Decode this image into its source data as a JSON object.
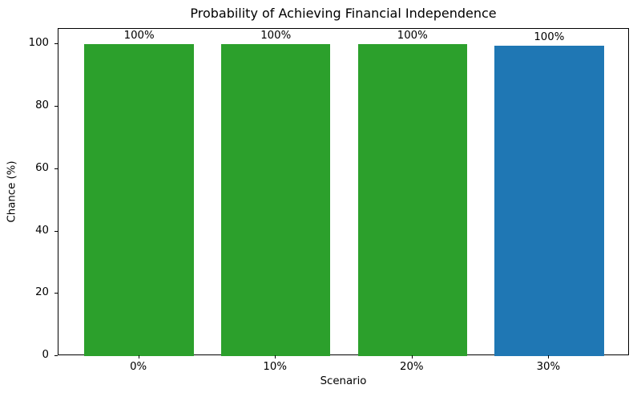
{
  "chart_data": {
    "type": "bar",
    "title": "Probability of Achieving Financial Independence",
    "xlabel": "Scenario",
    "ylabel": "Chance (%)",
    "categories": [
      "0%",
      "10%",
      "20%",
      "30%"
    ],
    "values": [
      100,
      100,
      100,
      99.5
    ],
    "bar_labels": [
      "100%",
      "100%",
      "100%",
      "100%"
    ],
    "bar_colors": [
      "#2ca02c",
      "#2ca02c",
      "#2ca02c",
      "#1f77b4"
    ],
    "ylim": [
      0,
      105
    ],
    "yticks": [
      0,
      20,
      40,
      60,
      80,
      100
    ],
    "bar_width_fraction": 0.8,
    "grid": false,
    "legend": "none",
    "background_color": "#ffffff",
    "spine_color": "#000000",
    "text_color": "#000000"
  }
}
